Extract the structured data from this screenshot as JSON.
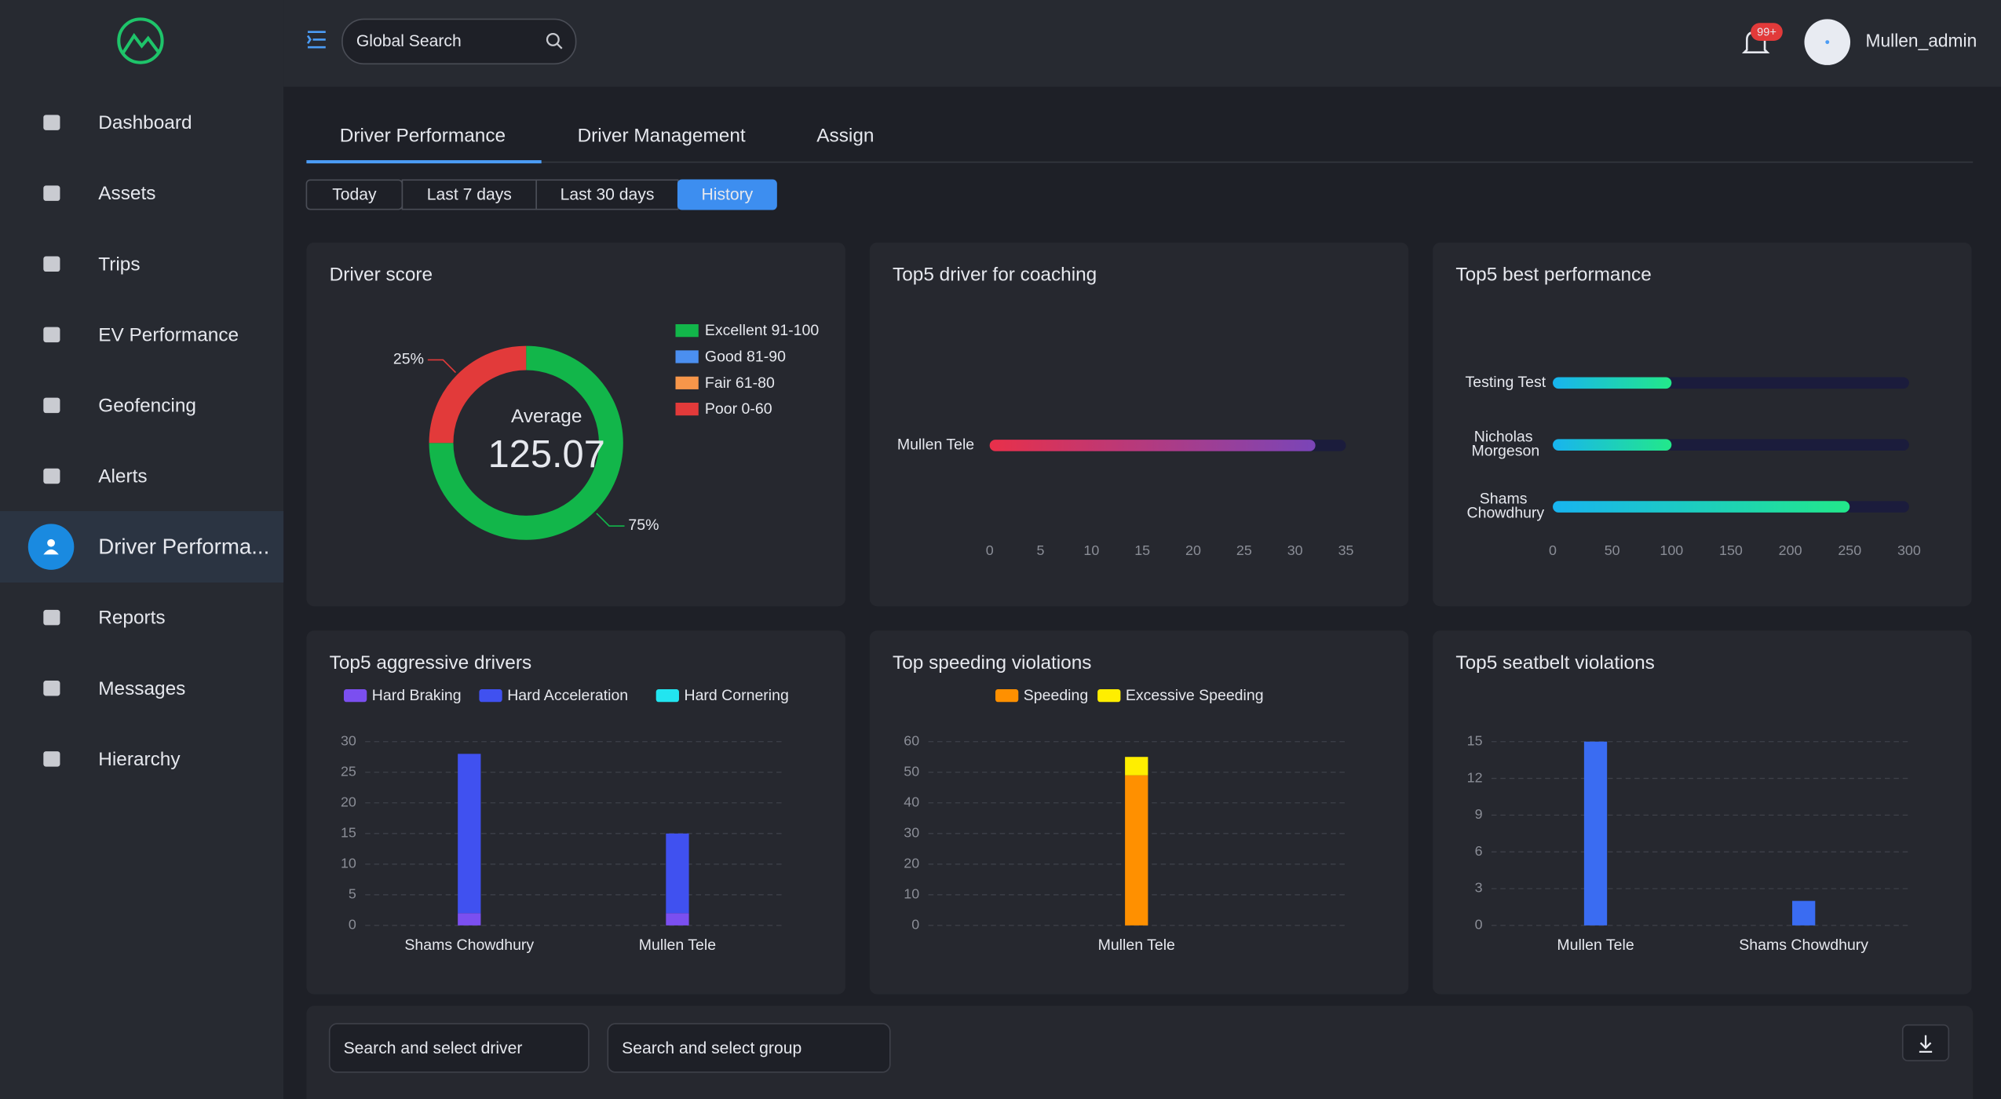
{
  "header": {
    "search_placeholder": "Global Search",
    "notification_badge": "99+",
    "username": "Mullen_admin"
  },
  "nav": [
    "Dashboard",
    "Assets",
    "Trips",
    "EV Performance",
    "Geofencing",
    "Alerts",
    "Driver Performa...",
    "Reports",
    "Messages",
    "Hierarchy"
  ],
  "nav_active": 6,
  "tabs": [
    "Driver Performance",
    "Driver Management",
    "Assign"
  ],
  "active_tab": 0,
  "filters": [
    "Today",
    "Last 7 days",
    "Last 30 days",
    "History"
  ],
  "active_filter": 3,
  "chart_data": [
    {
      "type": "donut",
      "title": "Driver score",
      "categories": [
        "Excellent 91-100",
        "Good 81-90",
        "Fair 61-80",
        "Poor 0-60"
      ],
      "colors": [
        "#12b64a",
        "#4b8ff0",
        "#f7964a",
        "#e23a3a"
      ],
      "values": [
        75,
        0,
        0,
        25
      ],
      "value_labels": [
        "75%",
        null,
        null,
        "25%"
      ],
      "center_label": "Average",
      "center_value": 125.07
    },
    {
      "type": "hbar",
      "title": "Top5 driver for coaching",
      "categories": [
        "Mullen Tele"
      ],
      "values": [
        32
      ],
      "colors": [
        "#e8304a",
        "#7a45b8"
      ],
      "xlim": [
        0,
        35
      ],
      "xticks": [
        0,
        5,
        10,
        15,
        20,
        25,
        30,
        35
      ]
    },
    {
      "type": "hbar",
      "title": "Top5 best performance",
      "categories": [
        "Testing Test",
        "Nicholas Morgeson",
        "Shams Chowdhury"
      ],
      "values": [
        100,
        100,
        250
      ],
      "colors": [
        "#18b4ef",
        "#22e88a"
      ],
      "xlim": [
        0,
        300
      ],
      "xticks": [
        0,
        50,
        100,
        150,
        200,
        250,
        300
      ]
    },
    {
      "type": "bar",
      "title": "Top5 aggressive drivers",
      "categories": [
        "Shams Chowdhury",
        "Mullen Tele"
      ],
      "series": [
        {
          "name": "Hard Braking",
          "color": "#7b4ff0",
          "values": [
            2,
            2
          ]
        },
        {
          "name": "Hard Acceleration",
          "color": "#4051f0",
          "values": [
            26,
            13
          ]
        },
        {
          "name": "Hard Cornering",
          "color": "#22e5f0",
          "values": [
            0,
            0
          ]
        }
      ],
      "ylim": [
        0,
        30
      ],
      "yticks": [
        0,
        5,
        10,
        15,
        20,
        25,
        30
      ],
      "grid": true
    },
    {
      "type": "bar",
      "title": "Top speeding violations",
      "categories": [
        "Mullen Tele"
      ],
      "series": [
        {
          "name": "Speeding",
          "color": "#ff9000",
          "values": [
            49
          ]
        },
        {
          "name": "Excessive Speeding",
          "color": "#ffee00",
          "values": [
            6
          ]
        }
      ],
      "ylim": [
        0,
        60
      ],
      "yticks": [
        0,
        10,
        20,
        30,
        40,
        50,
        60
      ],
      "grid": true
    },
    {
      "type": "bar",
      "title": "Top5 seatbelt violations",
      "categories": [
        "Mullen Tele",
        "Shams Chowdhury"
      ],
      "series": [
        {
          "color": "#3a6cf2",
          "values": [
            15,
            2
          ]
        }
      ],
      "ylim": [
        0,
        15
      ],
      "yticks": [
        0,
        3,
        6,
        9,
        12,
        15
      ],
      "grid": true
    }
  ],
  "footer": {
    "driver_placeholder": "Search and select driver",
    "group_placeholder": "Search and select group"
  }
}
